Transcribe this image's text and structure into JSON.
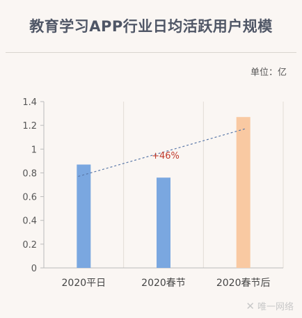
{
  "title": "教育学习APP行业日均活跃用户规模",
  "unit_label": "单位：亿",
  "watermark": "唯一网络",
  "chart_data": {
    "type": "bar",
    "categories": [
      "2020平日",
      "2020春节",
      "2020春节后"
    ],
    "values": [
      0.87,
      0.76,
      1.27
    ],
    "bar_colors": [
      "#7aa7e0",
      "#7aa7e0",
      "#f9c9a2"
    ],
    "ylim": [
      0,
      1.4
    ],
    "yticks": [
      "0",
      "0.2",
      "0.4",
      "0.6",
      "0.8",
      "1",
      "1.2",
      "1.4"
    ],
    "trend_line": {
      "from": 0.77,
      "to": 1.17,
      "color": "#5a78a8"
    },
    "annotation": {
      "text": "+46%",
      "color": "#c0392b"
    },
    "grid": true
  }
}
